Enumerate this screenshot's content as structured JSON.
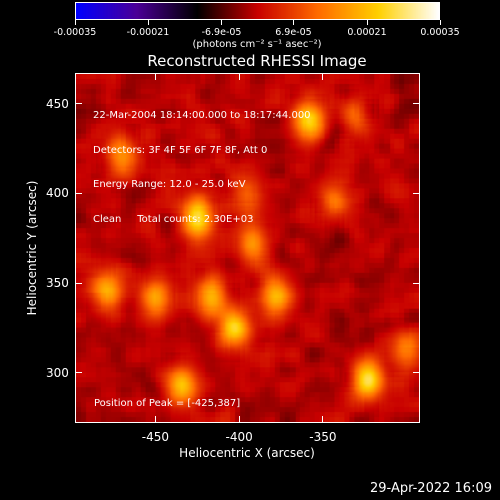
{
  "colorbar": {
    "tick_labels": [
      "-0.00035",
      "-0.00021",
      "-6.9e-05",
      "6.9e-05",
      "0.00021",
      "0.00035"
    ],
    "tick_values": [
      -0.00035,
      -0.00021,
      -6.9e-05,
      6.9e-05,
      0.00021,
      0.00035
    ],
    "units_text": "(photons cm⁻² s⁻¹ asec⁻²)",
    "range": [
      -0.00035,
      0.00035
    ],
    "colormap": [
      "#0000ff",
      "#4b0096",
      "#000000",
      "#c80000",
      "#ff6a00",
      "#ffd000",
      "#ffffff"
    ]
  },
  "title": "Reconstructed RHESSI Image",
  "annotations": {
    "lines": [
      "22-Mar-2004 18:14:00.000 to 18:17:44.000",
      "Detectors: 3F 4F 5F 6F 7F 8F, Att 0",
      "Energy Range: 12.0 - 25.0 keV",
      "Clean     Total counts: 2.30E+03"
    ],
    "peak": "Position of Peak = [-425,387]"
  },
  "axes": {
    "xlabel": "Heliocentric X (arcsec)",
    "ylabel": "Heliocentric Y (arcsec)",
    "xticks": [
      -450,
      -400,
      -350
    ],
    "yticks": [
      300,
      350,
      400,
      450
    ],
    "xlim": [
      -498,
      -292
    ],
    "ylim": [
      272,
      467
    ]
  },
  "footer_timestamp": "29-Apr-2022 16:09",
  "chart_data": {
    "type": "heatmap",
    "title": "Reconstructed RHESSI Image",
    "xlabel": "Heliocentric X (arcsec)",
    "ylabel": "Heliocentric Y (arcsec)",
    "xlim": [
      -498,
      -292
    ],
    "ylim": [
      272,
      467
    ],
    "value_range": [
      -0.00035,
      0.00035
    ],
    "peak_position": [
      -425,
      387
    ],
    "bright_sources": [
      {
        "x": -425,
        "y": 387,
        "value": 0.00035
      },
      {
        "x": -358,
        "y": 441,
        "value": 0.00033
      },
      {
        "x": -403,
        "y": 325,
        "value": 0.0003
      },
      {
        "x": -417,
        "y": 342,
        "value": 0.00028
      },
      {
        "x": -378,
        "y": 342,
        "value": 0.00026
      },
      {
        "x": -323,
        "y": 296,
        "value": 0.00032
      },
      {
        "x": -450,
        "y": 342,
        "value": 0.00024
      },
      {
        "x": -480,
        "y": 346,
        "value": 0.00022
      },
      {
        "x": -435,
        "y": 293,
        "value": 0.00025
      },
      {
        "x": -470,
        "y": 421,
        "value": 0.0002
      },
      {
        "x": -300,
        "y": 312,
        "value": 0.00018
      },
      {
        "x": -396,
        "y": 400,
        "value": 0.00015
      },
      {
        "x": -392,
        "y": 372,
        "value": 0.0002
      },
      {
        "x": -344,
        "y": 396,
        "value": 0.00016
      },
      {
        "x": -330,
        "y": 444,
        "value": 0.00014
      }
    ]
  }
}
